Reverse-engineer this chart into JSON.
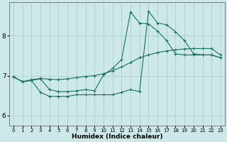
{
  "xlabel": "Humidex (Indice chaleur)",
  "bg_color": "#cce8e8",
  "line_color": "#1a7060",
  "grid_color": "#aac8c8",
  "xlim": [
    -0.5,
    23.5
  ],
  "ylim": [
    5.75,
    8.85
  ],
  "xticks": [
    0,
    1,
    2,
    3,
    4,
    5,
    6,
    7,
    8,
    9,
    10,
    11,
    12,
    13,
    14,
    15,
    16,
    17,
    18,
    19,
    20,
    21,
    22,
    23
  ],
  "yticks": [
    6,
    7,
    8
  ],
  "line1_x": [
    0,
    1,
    2,
    3,
    4,
    5,
    6,
    7,
    8,
    9,
    10,
    11,
    12,
    13,
    14,
    15,
    16,
    17,
    18,
    19,
    20,
    21,
    22,
    23
  ],
  "line1_y": [
    6.97,
    6.85,
    6.9,
    6.93,
    6.91,
    6.9,
    6.92,
    6.95,
    6.98,
    7.0,
    7.05,
    7.12,
    7.22,
    7.33,
    7.45,
    7.52,
    7.58,
    7.62,
    7.65,
    7.67,
    7.68,
    7.68,
    7.68,
    7.52
  ],
  "line2_x": [
    0,
    1,
    2,
    3,
    4,
    5,
    6,
    7,
    8,
    9,
    10,
    11,
    12,
    13,
    14,
    15,
    16,
    17,
    18,
    19,
    20,
    21,
    22,
    23
  ],
  "line2_y": [
    6.97,
    6.85,
    6.88,
    6.92,
    6.65,
    6.6,
    6.6,
    6.62,
    6.65,
    6.62,
    7.02,
    7.18,
    7.4,
    8.6,
    8.32,
    8.3,
    8.12,
    7.88,
    7.55,
    7.52,
    7.52,
    7.52,
    7.52,
    7.45
  ],
  "line3_x": [
    0,
    1,
    2,
    3,
    4,
    5,
    6,
    7,
    8,
    9,
    10,
    11,
    12,
    13,
    14,
    15,
    16,
    17,
    18,
    19,
    20,
    21,
    22,
    23
  ],
  "line3_y": [
    6.97,
    6.85,
    6.88,
    6.58,
    6.48,
    6.48,
    6.48,
    6.52,
    6.52,
    6.52,
    6.52,
    6.52,
    6.58,
    6.65,
    6.6,
    8.62,
    8.32,
    8.28,
    8.1,
    7.88,
    7.55,
    7.52,
    7.52,
    7.45
  ]
}
